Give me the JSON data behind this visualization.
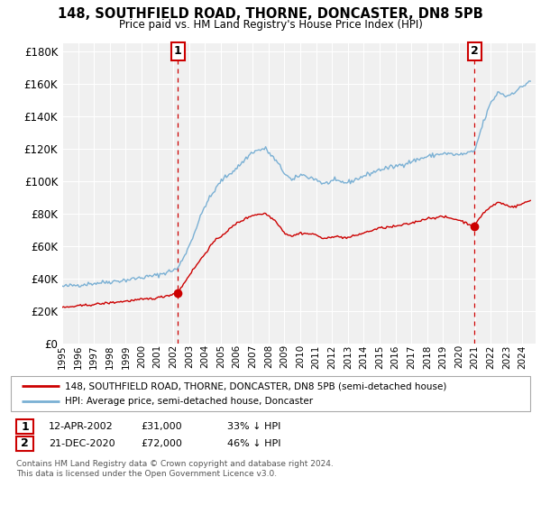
{
  "title": "148, SOUTHFIELD ROAD, THORNE, DONCASTER, DN8 5PB",
  "subtitle": "Price paid vs. HM Land Registry's House Price Index (HPI)",
  "legend_line1": "148, SOUTHFIELD ROAD, THORNE, DONCASTER, DN8 5PB (semi-detached house)",
  "legend_line2": "HPI: Average price, semi-detached house, Doncaster",
  "annotation1_date": "12-APR-2002",
  "annotation1_price": "£31,000",
  "annotation1_hpi": "33% ↓ HPI",
  "annotation2_date": "21-DEC-2020",
  "annotation2_price": "£72,000",
  "annotation2_hpi": "46% ↓ HPI",
  "footnote1": "Contains HM Land Registry data © Crown copyright and database right 2024.",
  "footnote2": "This data is licensed under the Open Government Licence v3.0.",
  "sale1_year": 2002.28,
  "sale1_price": 31000,
  "sale2_year": 2020.97,
  "sale2_price": 72000,
  "price_line_color": "#cc0000",
  "hpi_line_color": "#7ab0d4",
  "sale_marker_color": "#cc0000",
  "annotation_box_color": "#cc0000",
  "ylim_min": 0,
  "ylim_max": 185000,
  "yticks": [
    0,
    20000,
    40000,
    60000,
    80000,
    100000,
    120000,
    140000,
    160000,
    180000
  ],
  "background_color": "#ffffff",
  "plot_bg_color": "#f0f0f0"
}
